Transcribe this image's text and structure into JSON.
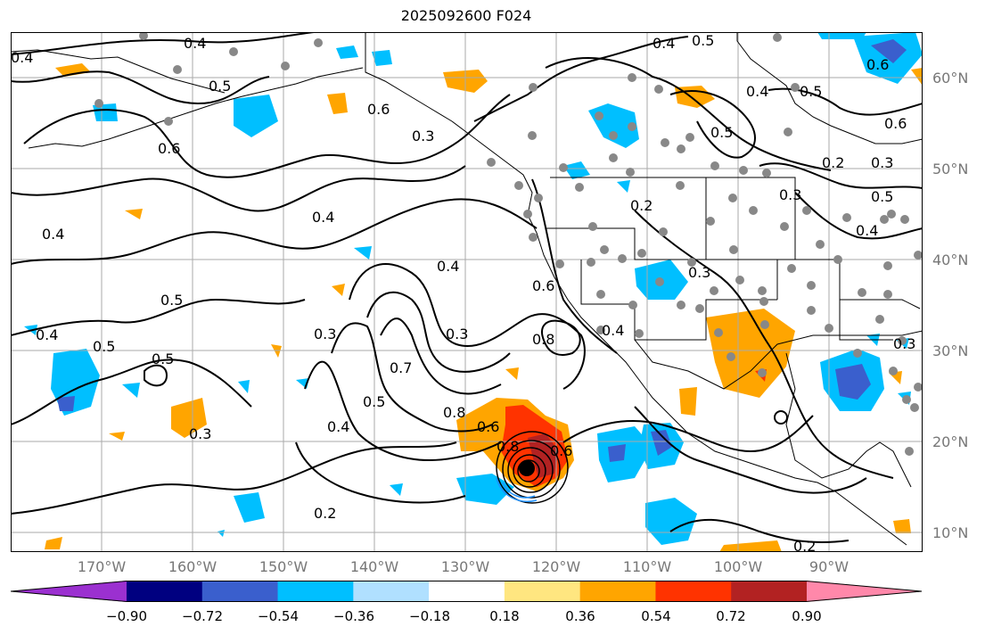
{
  "title": "2025092600 F024",
  "lat_labels": [
    "60°N",
    "50°N",
    "40°N",
    "30°N",
    "20°N",
    "10°N"
  ],
  "lon_labels": [
    "170°W",
    "160°W",
    "150°W",
    "140°W",
    "130°W",
    "120°W",
    "110°W",
    "100°W",
    "90°W"
  ],
  "colorbar": {
    "ticks": [
      "−0.90",
      "−0.72",
      "−0.54",
      "−0.36",
      "−0.18",
      "0.18",
      "0.36",
      "0.54",
      "0.72",
      "0.90"
    ],
    "colors": [
      "#9b30d0",
      "#000080",
      "#3a5fcd",
      "#00bfff",
      "#b0e0ff",
      "#ffffff",
      "#ffe680",
      "#ffa500",
      "#ff3300",
      "#b22222",
      "#ff88aa"
    ]
  },
  "contour_labels": [
    "0.4",
    "0.5",
    "0.6",
    "0.4",
    "0.5",
    "0.6",
    "0.4",
    "0.5",
    "0.6",
    "0.3",
    "0.4",
    "0.5",
    "0.6",
    "0.2",
    "0.3",
    "0.4",
    "0.5",
    "0.4",
    "0.2",
    "0.3",
    "0.5",
    "0.4",
    "0.6",
    "0.5",
    "0.8",
    "0.3",
    "0.7",
    "0.5",
    "0.3",
    "0.8",
    "0.6",
    "0.4",
    "0.5",
    "0.8",
    "0.3",
    "0.2",
    "0.2",
    "0.3",
    "0.5",
    "0.4",
    "0.3",
    "0.5",
    "0.4",
    "0.5"
  ],
  "colors": {
    "land_line": "#000000",
    "grid": "#aaaaaa",
    "station": "#888888",
    "contour": "#000000"
  }
}
